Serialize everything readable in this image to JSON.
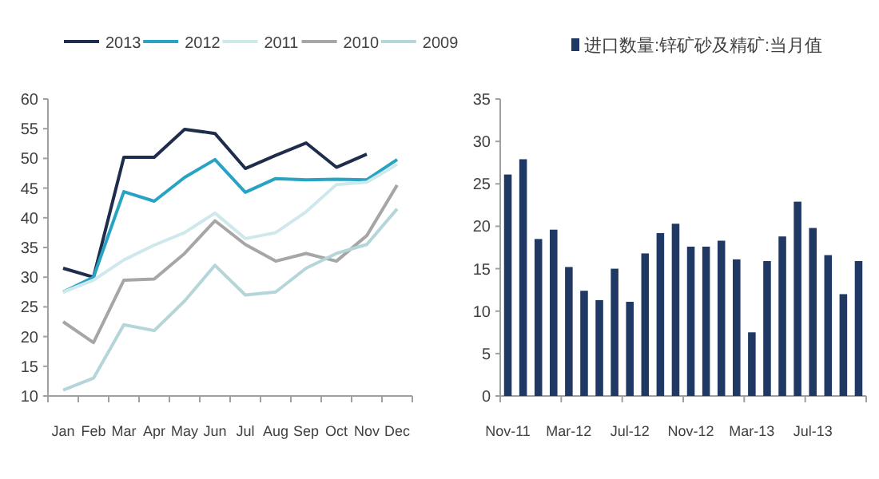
{
  "chart_data": [
    {
      "type": "line",
      "categories": [
        "Jan",
        "Feb",
        "Mar",
        "Apr",
        "May",
        "Jun",
        "Jul",
        "Aug",
        "Sep",
        "Oct",
        "Nov",
        "Dec"
      ],
      "series": [
        {
          "name": "2013",
          "color": "#1f2d4d",
          "values": [
            31.5,
            30,
            50.2,
            50.2,
            54.9,
            54.2,
            48.3,
            50.5,
            52.6,
            48.5,
            50.7,
            null
          ]
        },
        {
          "name": "2012",
          "color": "#29a3c4",
          "values": [
            27.5,
            30,
            44.4,
            42.8,
            46.8,
            49.8,
            44.3,
            46.6,
            46.4,
            46.5,
            46.4,
            49.8
          ]
        },
        {
          "name": "2011",
          "color": "#cfe8eb",
          "values": [
            27.5,
            29.5,
            32.9,
            35.4,
            37.5,
            40.8,
            36.5,
            37.5,
            41,
            45.6,
            46,
            49
          ]
        },
        {
          "name": "2010",
          "color": "#a6a6a6",
          "values": [
            22.5,
            19,
            29.5,
            29.7,
            34,
            39.5,
            35.5,
            32.7,
            34,
            32.7,
            37,
            45.5
          ]
        },
        {
          "name": "2009",
          "color": "#b5d6d9",
          "values": [
            11,
            13,
            22,
            21,
            26,
            32,
            27,
            27.5,
            31.5,
            34,
            35.5,
            41.5
          ]
        }
      ],
      "ylim": [
        10,
        60
      ],
      "yticks": [
        10,
        15,
        20,
        25,
        30,
        35,
        40,
        45,
        50,
        55,
        60
      ],
      "grid": false,
      "legend": "top",
      "marker": "none",
      "line_style": "solid"
    },
    {
      "type": "bar",
      "categories": [
        "Nov-11",
        null,
        null,
        null,
        "Mar-12",
        null,
        null,
        null,
        "Jul-12",
        null,
        null,
        null,
        "Nov-12",
        null,
        null,
        null,
        "Mar-13",
        null,
        null,
        null,
        "Jul-13",
        null,
        null,
        null
      ],
      "series": [
        {
          "name": "进口数量:锌矿砂及精矿:当月值",
          "color": "#1f3864",
          "values": [
            26.1,
            27.9,
            18.5,
            19.6,
            15.2,
            12.4,
            11.3,
            15.0,
            11.1,
            16.8,
            19.2,
            20.3,
            17.6,
            17.6,
            18.3,
            16.1,
            7.5,
            15.9,
            18.8,
            22.9,
            19.8,
            16.6,
            12.0,
            15.9
          ]
        }
      ],
      "ylim": [
        0,
        35
      ],
      "yticks": [
        0,
        5,
        10,
        15,
        20,
        25,
        30,
        35
      ],
      "grid": false,
      "legend": "top"
    }
  ]
}
